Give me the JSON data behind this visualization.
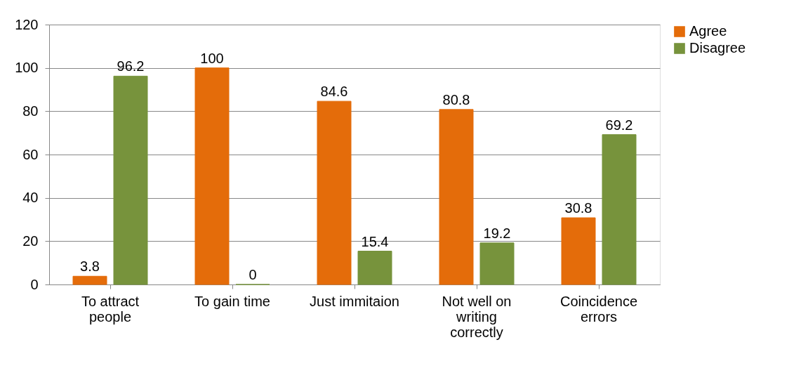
{
  "chart_data": {
    "type": "bar",
    "categories": [
      "To attract people",
      "To gain time",
      "Just immitaion",
      "Not well on writing correctly",
      "Coincidence errors"
    ],
    "series": [
      {
        "name": "Agree",
        "color": "#e46c0a",
        "values": [
          3.8,
          100,
          84.6,
          80.8,
          30.8
        ]
      },
      {
        "name": "Disagree",
        "color": "#77933c",
        "values": [
          96.2,
          0,
          15.4,
          19.2,
          69.2
        ]
      }
    ],
    "ylim": [
      0,
      120
    ],
    "yticks": [
      0,
      20,
      40,
      60,
      80,
      100,
      120
    ],
    "grid": "y",
    "legend": "right",
    "data_labels": true
  }
}
